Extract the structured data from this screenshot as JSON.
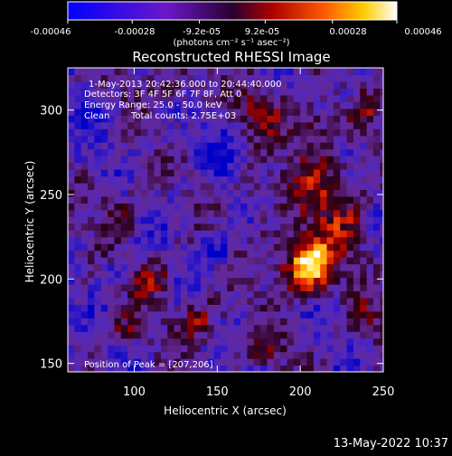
{
  "colorbar": {
    "tick_labels": [
      "-0.00046",
      "-0.00028",
      "-9.2e-05",
      "9.2e-05",
      "0.00028",
      "0.00046"
    ],
    "tick_values": [
      -0.00046,
      -0.00028,
      -9.2e-05,
      9.2e-05,
      0.00028,
      0.00046
    ],
    "range": [
      -0.00046,
      0.00046
    ],
    "unit_label": "(photons cm⁻² s⁻¹ asec⁻²)"
  },
  "annotations": {
    "time_range": "1-May-2013 20:42:36.000 to 20:44:40.000",
    "detectors": "Detectors: 3F 4F 5F 6F 7F 8F, Att 0",
    "energy_range": "Energy Range: 25.0 - 50.0 keV",
    "method": "Clean",
    "total_counts": "Total counts: 2.75E+03",
    "peak_position": "Position of Peak = [207,206]"
  },
  "footer": {
    "timestamp": "13-May-2022 10:37"
  },
  "chart_data": {
    "type": "heatmap",
    "title": "Reconstructed RHESSI Image",
    "xlabel": "Heliocentric X (arcsec)",
    "ylabel": "Heliocentric Y (arcsec)",
    "xlim": [
      60,
      250
    ],
    "ylim": [
      145,
      325
    ],
    "x_ticks": [
      100,
      150,
      200,
      250
    ],
    "y_ticks": [
      150,
      200,
      250,
      300
    ],
    "grid": false,
    "colormap": "blue-purple-red-yellow-white",
    "peak": [
      207,
      206
    ],
    "value_range": [
      -0.00046,
      0.00046
    ]
  }
}
